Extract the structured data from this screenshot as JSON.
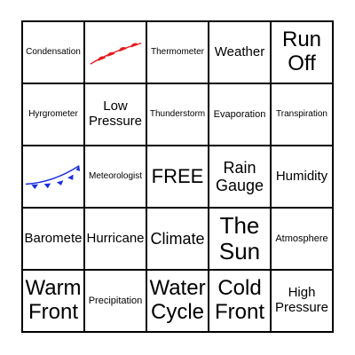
{
  "board": {
    "cells": [
      "Condensation",
      "",
      "Thermometer",
      "Weather",
      "Run Off",
      "Hyrgrometer",
      "Low Pressure",
      "Thunderstorm",
      "Evaporation",
      "Transpiration",
      "",
      "Meteorologist",
      "FREE",
      "Rain Gauge",
      "Humidity",
      "Baromete",
      "Hurricane",
      "Climate",
      "The Sun",
      "Atmosphere",
      "Warm Front",
      "Precipitation",
      "Water Cycle",
      "Cold Front",
      "High Pressure"
    ]
  },
  "icons": {
    "warm_front": "warm-front-icon",
    "cold_front": "cold-front-icon"
  },
  "colors": {
    "warm_front": "#e8191b",
    "cold_front": "#1a2fe0"
  }
}
